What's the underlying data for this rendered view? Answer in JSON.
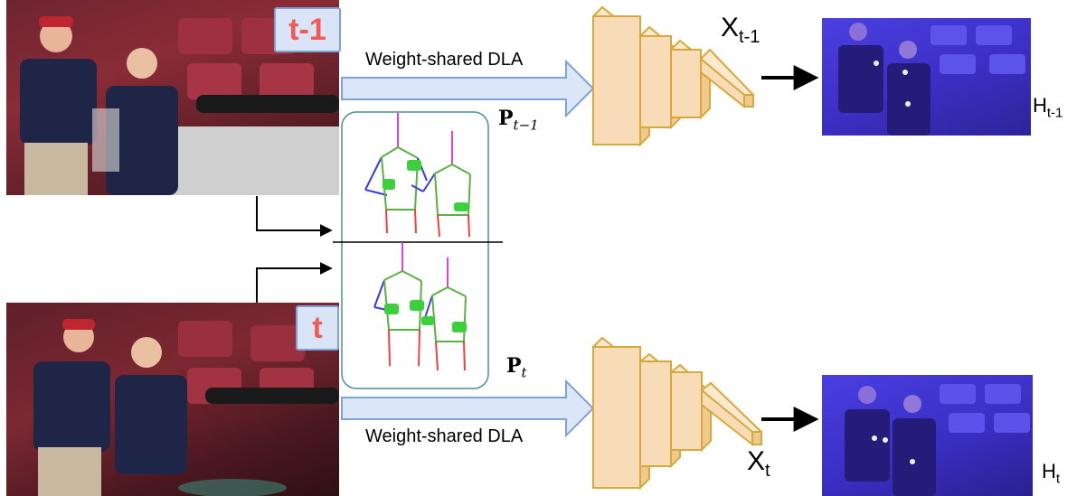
{
  "frames": {
    "prev_tag": "t-1",
    "curr_tag": "t"
  },
  "arrows": {
    "top_label": "Weight-shared DLA",
    "bottom_label": "Weight-shared DLA"
  },
  "pose": {
    "prev_symbol": "P",
    "prev_sub": "t−1",
    "curr_symbol": "P",
    "curr_sub": "t"
  },
  "features": {
    "prev_symbol": "X",
    "prev_sub": "t-1",
    "curr_symbol": "X",
    "curr_sub": "t"
  },
  "heatmaps": {
    "prev_symbol": "H",
    "prev_sub": "t-1",
    "curr_symbol": "H",
    "curr_sub": "t"
  },
  "colors": {
    "frame_tag_bg": "#d9e5f7",
    "frame_tag_text": "#f05a57",
    "arrow_fill": "#dbe6f6",
    "arrow_stroke": "#7fa2d6",
    "block_fill": "#f7dcb7",
    "block_stroke": "#d6a93a",
    "pose_box_stroke": "#4f8f8f",
    "heatmap_tint": "#3b2fd6"
  }
}
